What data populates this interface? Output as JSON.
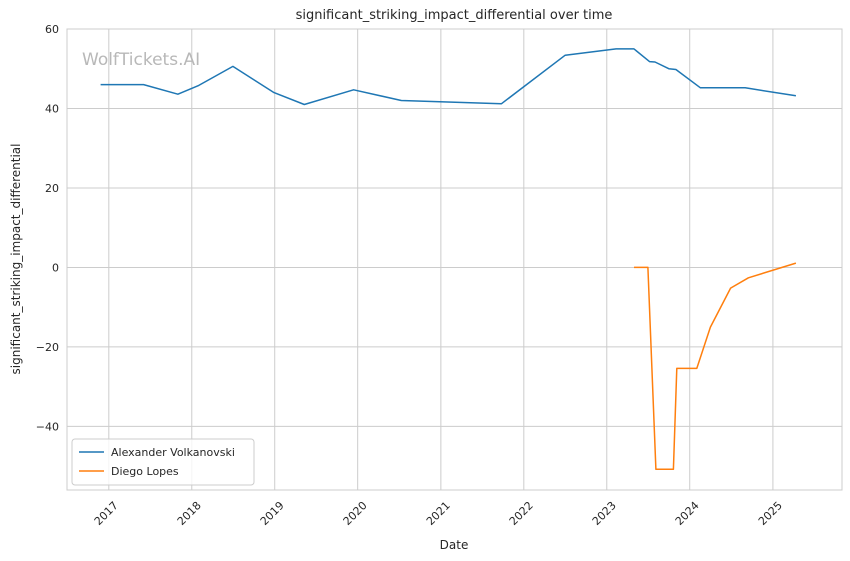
{
  "chart_data": {
    "type": "line",
    "title": "significant_striking_impact_differential over time",
    "xlabel": "Date",
    "ylabel": "significant_striking_impact_differential",
    "xlim": [
      "2016-07-01",
      "2025-11-01"
    ],
    "ylim": [
      -56,
      60
    ],
    "x_ticks": [
      "2017",
      "2018",
      "2019",
      "2020",
      "2021",
      "2022",
      "2023",
      "2024",
      "2025"
    ],
    "y_ticks": [
      60,
      40,
      20,
      0,
      -20,
      -40
    ],
    "grid": true,
    "legend_position": "lower-left",
    "watermark": "WolfTickets.AI",
    "series": [
      {
        "name": "Alexander Volkanovski",
        "color": "#1f77b4",
        "points": [
          {
            "x": "2016-11-26",
            "y": 46.0
          },
          {
            "x": "2017-06-03",
            "y": 46.0
          },
          {
            "x": "2017-11-01",
            "y": 43.6
          },
          {
            "x": "2018-02-01",
            "y": 45.8
          },
          {
            "x": "2018-07-01",
            "y": 50.6
          },
          {
            "x": "2018-12-29",
            "y": 44.0
          },
          {
            "x": "2019-05-11",
            "y": 41.0
          },
          {
            "x": "2019-12-14",
            "y": 44.7
          },
          {
            "x": "2020-07-11",
            "y": 42.0
          },
          {
            "x": "2021-09-25",
            "y": 41.2
          },
          {
            "x": "2022-07-02",
            "y": 53.4
          },
          {
            "x": "2023-02-11",
            "y": 55.0
          },
          {
            "x": "2023-05-01",
            "y": 55.0
          },
          {
            "x": "2023-07-08",
            "y": 51.8
          },
          {
            "x": "2023-08-01",
            "y": 51.7
          },
          {
            "x": "2023-10-01",
            "y": 50.0
          },
          {
            "x": "2023-11-01",
            "y": 49.8
          },
          {
            "x": "2024-02-17",
            "y": 45.2
          },
          {
            "x": "2024-09-01",
            "y": 45.2
          },
          {
            "x": "2025-04-12",
            "y": 43.2
          }
        ]
      },
      {
        "name": "Diego Lopes",
        "color": "#ff7f0e",
        "points": [
          {
            "x": "2023-05-01",
            "y": 0.0
          },
          {
            "x": "2023-07-01",
            "y": 0.0
          },
          {
            "x": "2023-08-05",
            "y": -50.8
          },
          {
            "x": "2023-10-21",
            "y": -50.8
          },
          {
            "x": "2023-11-05",
            "y": -25.4
          },
          {
            "x": "2024-02-01",
            "y": -25.4
          },
          {
            "x": "2024-04-01",
            "y": -15.0
          },
          {
            "x": "2024-06-29",
            "y": -5.2
          },
          {
            "x": "2024-09-15",
            "y": -2.6
          },
          {
            "x": "2025-04-12",
            "y": 1.1
          }
        ]
      }
    ]
  }
}
